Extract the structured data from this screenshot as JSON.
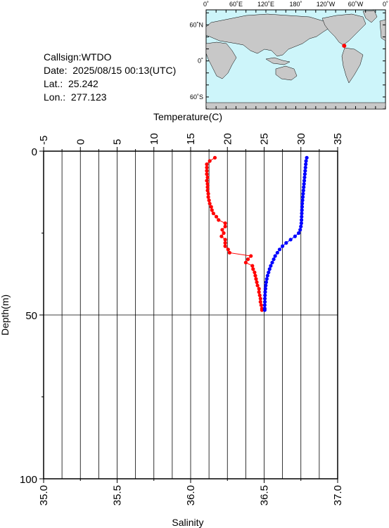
{
  "station": {
    "callsign": "Callsign:WTDO",
    "date": "Date:  2025/08/15 00:13(UTC)",
    "lat": "Lat.:  25.242",
    "lon": "Lon.:  277.123"
  },
  "map": {
    "top_labels": [
      "0˚",
      "60˚E",
      "120˚E",
      "180˚",
      "120˚W",
      "60˚W",
      "0˚"
    ],
    "left_labels": [
      "60˚N",
      "0˚",
      "60˚S"
    ],
    "ocean_color": "#cdf5fa",
    "land_color": "#c8c8c8",
    "marker_color": "#ff0000",
    "station_lon": 277.123,
    "station_lat": 25.242
  },
  "chart_data": {
    "type": "line",
    "top_axis": {
      "label": "Temperature(C)",
      "range": [
        -5,
        35
      ],
      "ticks": [
        "-5",
        "0",
        "5",
        "10",
        "15",
        "20",
        "25",
        "30",
        "35"
      ]
    },
    "bottom_axis": {
      "label": "Salinity",
      "range": [
        35.0,
        37.0
      ],
      "ticks": [
        "35.0",
        "35.5",
        "36.0",
        "36.5",
        "37.0"
      ]
    },
    "y_axis": {
      "label": "Depth(m)",
      "range": [
        0,
        100
      ],
      "inverted": true,
      "ticks": [
        "0",
        "50",
        "100"
      ]
    },
    "grid": true,
    "series": [
      {
        "name": "",
        "axis": "temperature",
        "color": "#ff0000",
        "points": [
          [
            18.3,
            2
          ],
          [
            17.6,
            3
          ],
          [
            17.2,
            4
          ],
          [
            17.2,
            5
          ],
          [
            17.2,
            6
          ],
          [
            17.2,
            7
          ],
          [
            17.3,
            8
          ],
          [
            17.2,
            9
          ],
          [
            17.3,
            10
          ],
          [
            17.3,
            11
          ],
          [
            17.3,
            12
          ],
          [
            17.4,
            13
          ],
          [
            17.4,
            14
          ],
          [
            17.5,
            15
          ],
          [
            17.6,
            16
          ],
          [
            17.8,
            17
          ],
          [
            17.9,
            18
          ],
          [
            18.1,
            19
          ],
          [
            18.5,
            20
          ],
          [
            18.8,
            21
          ],
          [
            19.7,
            22
          ],
          [
            19.7,
            23
          ],
          [
            19.3,
            24
          ],
          [
            19.5,
            25
          ],
          [
            19.2,
            26
          ],
          [
            19.7,
            27
          ],
          [
            19.7,
            28
          ],
          [
            19.7,
            29
          ],
          [
            20.1,
            30
          ],
          [
            20.3,
            31
          ],
          [
            23.2,
            32
          ],
          [
            22.8,
            33
          ],
          [
            22.5,
            34
          ],
          [
            23.4,
            35
          ],
          [
            23.5,
            36
          ],
          [
            23.7,
            37
          ],
          [
            23.8,
            38
          ],
          [
            23.9,
            39
          ],
          [
            24.0,
            40
          ],
          [
            24.1,
            41
          ],
          [
            24.3,
            42
          ],
          [
            24.3,
            43
          ],
          [
            24.4,
            44
          ],
          [
            24.5,
            45
          ],
          [
            24.5,
            46
          ],
          [
            24.6,
            47
          ],
          [
            24.7,
            48
          ],
          [
            24.7,
            48.5
          ]
        ]
      },
      {
        "name": "",
        "axis": "salinity",
        "color": "#0000ff",
        "points": [
          [
            36.79,
            2
          ],
          [
            36.785,
            3
          ],
          [
            36.783,
            4
          ],
          [
            36.781,
            5
          ],
          [
            36.779,
            6
          ],
          [
            36.777,
            7
          ],
          [
            36.775,
            8
          ],
          [
            36.773,
            9
          ],
          [
            36.771,
            10
          ],
          [
            36.769,
            11
          ],
          [
            36.767,
            12
          ],
          [
            36.765,
            13
          ],
          [
            36.763,
            14
          ],
          [
            36.761,
            15
          ],
          [
            36.759,
            16
          ],
          [
            36.758,
            17
          ],
          [
            36.757,
            18
          ],
          [
            36.756,
            19
          ],
          [
            36.755,
            20
          ],
          [
            36.754,
            21
          ],
          [
            36.753,
            22
          ],
          [
            36.75,
            23
          ],
          [
            36.745,
            24
          ],
          [
            36.735,
            25
          ],
          [
            36.71,
            26
          ],
          [
            36.68,
            27
          ],
          [
            36.65,
            28
          ],
          [
            36.625,
            29
          ],
          [
            36.605,
            30
          ],
          [
            36.59,
            31
          ],
          [
            36.575,
            32
          ],
          [
            36.565,
            33
          ],
          [
            36.555,
            34
          ],
          [
            36.545,
            35
          ],
          [
            36.537,
            36
          ],
          [
            36.53,
            37
          ],
          [
            36.523,
            38
          ],
          [
            36.518,
            39
          ],
          [
            36.514,
            40
          ],
          [
            36.511,
            41
          ],
          [
            36.509,
            42
          ],
          [
            36.507,
            43
          ],
          [
            36.506,
            44
          ],
          [
            36.505,
            45
          ],
          [
            36.505,
            46
          ],
          [
            36.504,
            47
          ],
          [
            36.504,
            48
          ],
          [
            36.504,
            48.5
          ]
        ]
      }
    ]
  }
}
